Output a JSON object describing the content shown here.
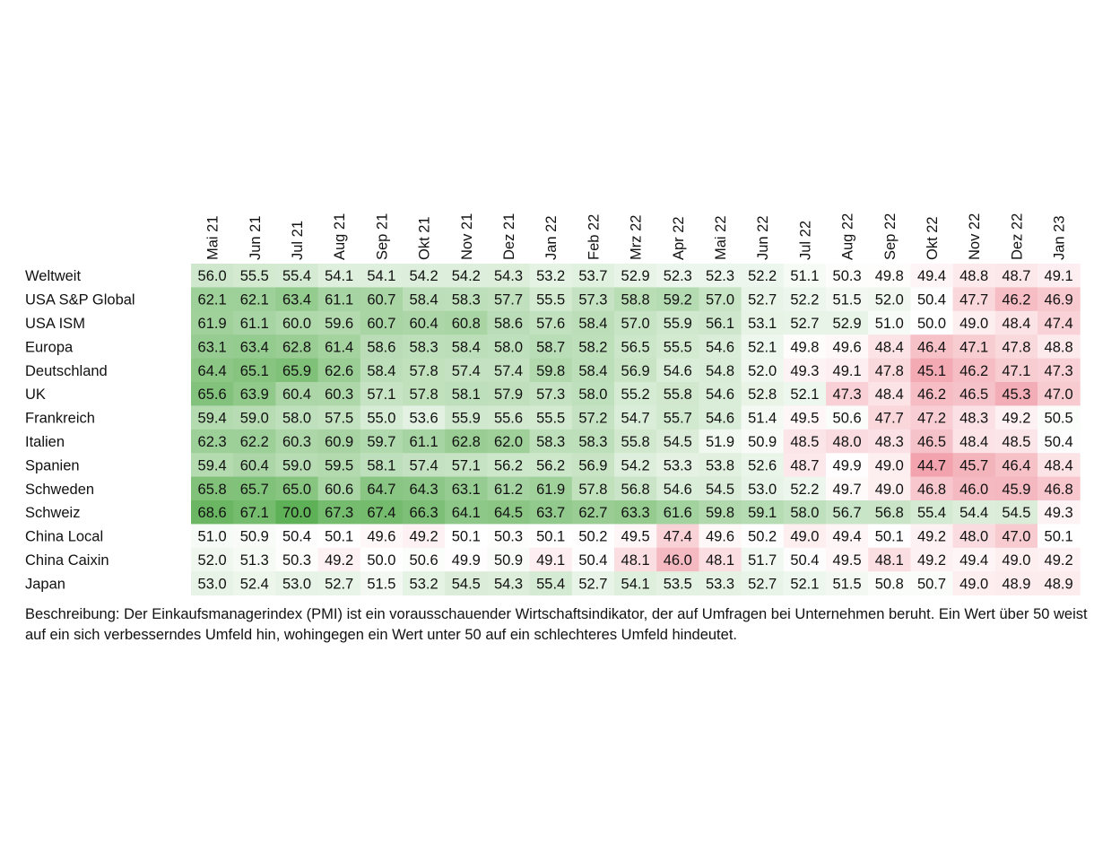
{
  "chart_data": {
    "type": "heatmap",
    "title": "",
    "xlabel": "",
    "ylabel": "",
    "columns": [
      "Mai 21",
      "Jun 21",
      "Jul 21",
      "Aug 21",
      "Sep 21",
      "Okt 21",
      "Nov 21",
      "Dez 21",
      "Jan 22",
      "Feb 22",
      "Mrz 22",
      "Apr 22",
      "Mai 22",
      "Jun 22",
      "Jul 22",
      "Aug 22",
      "Sep 22",
      "Okt 22",
      "Nov 22",
      "Dez 22",
      "Jan 23"
    ],
    "rows": [
      {
        "name": "Weltweit",
        "values": [
          56.0,
          55.5,
          55.4,
          54.1,
          54.1,
          54.2,
          54.2,
          54.3,
          53.2,
          53.7,
          52.9,
          52.3,
          52.3,
          52.2,
          51.1,
          50.3,
          49.8,
          49.4,
          48.8,
          48.7,
          49.1
        ]
      },
      {
        "name": "USA S&P Global",
        "values": [
          62.1,
          62.1,
          63.4,
          61.1,
          60.7,
          58.4,
          58.3,
          57.7,
          55.5,
          57.3,
          58.8,
          59.2,
          57.0,
          52.7,
          52.2,
          51.5,
          52.0,
          50.4,
          47.7,
          46.2,
          46.9
        ]
      },
      {
        "name": "USA ISM",
        "values": [
          61.9,
          61.1,
          60.0,
          59.6,
          60.7,
          60.4,
          60.8,
          58.6,
          57.6,
          58.4,
          57.0,
          55.9,
          56.1,
          53.1,
          52.7,
          52.9,
          51.0,
          50.0,
          49.0,
          48.4,
          47.4
        ]
      },
      {
        "name": "Europa",
        "values": [
          63.1,
          63.4,
          62.8,
          61.4,
          58.6,
          58.3,
          58.4,
          58.0,
          58.7,
          58.2,
          56.5,
          55.5,
          54.6,
          52.1,
          49.8,
          49.6,
          48.4,
          46.4,
          47.1,
          47.8,
          48.8
        ]
      },
      {
        "name": "Deutschland",
        "values": [
          64.4,
          65.1,
          65.9,
          62.6,
          58.4,
          57.8,
          57.4,
          57.4,
          59.8,
          58.4,
          56.9,
          54.6,
          54.8,
          52.0,
          49.3,
          49.1,
          47.8,
          45.1,
          46.2,
          47.1,
          47.3
        ]
      },
      {
        "name": "UK",
        "values": [
          65.6,
          63.9,
          60.4,
          60.3,
          57.1,
          57.8,
          58.1,
          57.9,
          57.3,
          58.0,
          55.2,
          55.8,
          54.6,
          52.8,
          52.1,
          47.3,
          48.4,
          46.2,
          46.5,
          45.3,
          47.0
        ]
      },
      {
        "name": "Frankreich",
        "values": [
          59.4,
          59.0,
          58.0,
          57.5,
          55.0,
          53.6,
          55.9,
          55.6,
          55.5,
          57.2,
          54.7,
          55.7,
          54.6,
          51.4,
          49.5,
          50.6,
          47.7,
          47.2,
          48.3,
          49.2,
          50.5
        ]
      },
      {
        "name": "Italien",
        "values": [
          62.3,
          62.2,
          60.3,
          60.9,
          59.7,
          61.1,
          62.8,
          62.0,
          58.3,
          58.3,
          55.8,
          54.5,
          51.9,
          50.9,
          48.5,
          48.0,
          48.3,
          46.5,
          48.4,
          48.5,
          50.4
        ]
      },
      {
        "name": "Spanien",
        "values": [
          59.4,
          60.4,
          59.0,
          59.5,
          58.1,
          57.4,
          57.1,
          56.2,
          56.2,
          56.9,
          54.2,
          53.3,
          53.8,
          52.6,
          48.7,
          49.9,
          49.0,
          44.7,
          45.7,
          46.4,
          48.4
        ]
      },
      {
        "name": "Schweden",
        "values": [
          65.8,
          65.7,
          65.0,
          60.6,
          64.7,
          64.3,
          63.1,
          61.2,
          61.9,
          57.8,
          56.8,
          54.6,
          54.5,
          53.0,
          52.2,
          49.7,
          49.0,
          46.8,
          46.0,
          45.9,
          46.8
        ]
      },
      {
        "name": "Schweiz",
        "values": [
          68.6,
          67.1,
          70.0,
          67.3,
          67.4,
          66.3,
          64.1,
          64.5,
          63.7,
          62.7,
          63.3,
          61.6,
          59.8,
          59.1,
          58.0,
          56.7,
          56.8,
          55.4,
          54.4,
          54.5,
          49.3
        ]
      },
      {
        "name": "China Local",
        "values": [
          51.0,
          50.9,
          50.4,
          50.1,
          49.6,
          49.2,
          50.1,
          50.3,
          50.1,
          50.2,
          49.5,
          47.4,
          49.6,
          50.2,
          49.0,
          49.4,
          50.1,
          49.2,
          48.0,
          47.0,
          50.1
        ]
      },
      {
        "name": "China Caixin",
        "values": [
          52.0,
          51.3,
          50.3,
          49.2,
          50.0,
          50.6,
          49.9,
          50.9,
          49.1,
          50.4,
          48.1,
          46.0,
          48.1,
          51.7,
          50.4,
          49.5,
          48.1,
          49.2,
          49.4,
          49.0,
          49.2
        ]
      },
      {
        "name": "Japan",
        "values": [
          53.0,
          52.4,
          53.0,
          52.7,
          51.5,
          53.2,
          54.5,
          54.3,
          55.4,
          52.7,
          54.1,
          53.5,
          53.3,
          52.7,
          52.1,
          51.5,
          50.8,
          50.7,
          49.0,
          48.9,
          48.9
        ]
      }
    ],
    "colors": {
      "high": "#5fb157",
      "mid": "#ffffff",
      "low": "#f2a3ad"
    },
    "color_midpoint": 50
  },
  "description": "Beschreibung: Der Einkaufsmanagerindex (PMI) ist ein vorausschauender Wirtschaftsindikator, der auf Umfragen bei Unternehmen beruht. Ein Wert über 50 weist auf ein sich verbesserndes Umfeld hin, wohingegen ein Wert unter 50 auf ein schlechteres Umfeld hindeutet."
}
